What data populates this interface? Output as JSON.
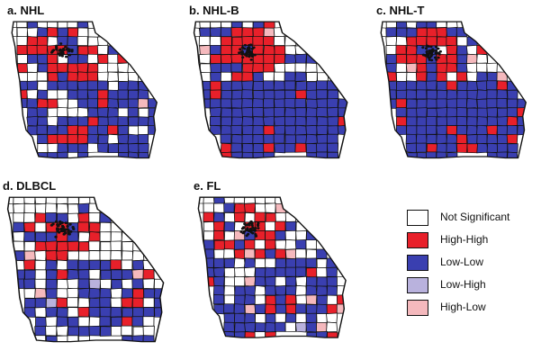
{
  "panels": [
    {
      "id": "a",
      "title": "a.  NHL",
      "pattern": {
        "red": 0.22,
        "blue": 0.42,
        "pink": 0.02,
        "lav": 0.0
      }
    },
    {
      "id": "b",
      "title": "b.  NHL-B",
      "pattern": {
        "red": 0.22,
        "blue": 0.62,
        "pink": 0.02,
        "lav": 0.0
      }
    },
    {
      "id": "c",
      "title": "c.  NHL-T",
      "pattern": {
        "red": 0.2,
        "blue": 0.58,
        "pink": 0.03,
        "lav": 0.0
      }
    },
    {
      "id": "d",
      "title": "d.  DLBCL",
      "pattern": {
        "red": 0.16,
        "blue": 0.3,
        "pink": 0.02,
        "lav": 0.02
      }
    },
    {
      "id": "e",
      "title": "e.  FL",
      "pattern": {
        "red": 0.18,
        "blue": 0.36,
        "pink": 0.03,
        "lav": 0.01
      }
    }
  ],
  "legend": [
    {
      "label": "Not Significant",
      "color": "#ffffff"
    },
    {
      "label": "High-High",
      "color": "#e8202a"
    },
    {
      "label": "Low-Low",
      "color": "#3a3fb0"
    },
    {
      "label": "Low-High",
      "color": "#b9b2dd"
    },
    {
      "label": "High-Low",
      "color": "#f5b9bd"
    }
  ]
}
